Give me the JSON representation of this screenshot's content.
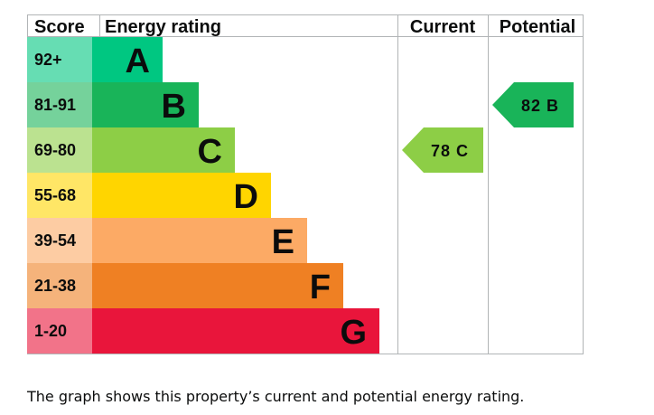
{
  "headers": {
    "score": "Score",
    "energy_rating": "Energy rating",
    "current": "Current",
    "potential": "Potential"
  },
  "chart_data": {
    "type": "bar",
    "title": "",
    "categories": [
      "A",
      "B",
      "C",
      "D",
      "E",
      "F",
      "G"
    ],
    "bands": [
      {
        "letter": "A",
        "range": "92+",
        "score_min": 92,
        "score_max": 100,
        "color": "#00c781",
        "score_bg": "#66ddb3"
      },
      {
        "letter": "B",
        "range": "81-91",
        "score_min": 81,
        "score_max": 91,
        "color": "#19b459",
        "score_bg": "#75d29b"
      },
      {
        "letter": "C",
        "range": "69-80",
        "score_min": 69,
        "score_max": 80,
        "color": "#8dce46",
        "score_bg": "#bbe290"
      },
      {
        "letter": "D",
        "range": "55-68",
        "score_min": 55,
        "score_max": 68,
        "color": "#ffd500",
        "score_bg": "#ffe666"
      },
      {
        "letter": "E",
        "range": "39-54",
        "score_min": 39,
        "score_max": 54,
        "color": "#fcaa65",
        "score_bg": "#fdcca3"
      },
      {
        "letter": "F",
        "range": "21-38",
        "score_min": 21,
        "score_max": 38,
        "color": "#ef8023",
        "score_bg": "#f5b37b"
      },
      {
        "letter": "G",
        "range": "1-20",
        "score_min": 1,
        "score_max": 20,
        "color": "#e9153b",
        "score_bg": "#f27389"
      }
    ],
    "current": {
      "score": 78,
      "band": "C",
      "label": "78 C",
      "color": "#8dce46"
    },
    "potential": {
      "score": 82,
      "band": "B",
      "label": "82 B",
      "color": "#19b459"
    },
    "grid": true
  },
  "caption": "The graph shows this property’s current and potential energy rating."
}
